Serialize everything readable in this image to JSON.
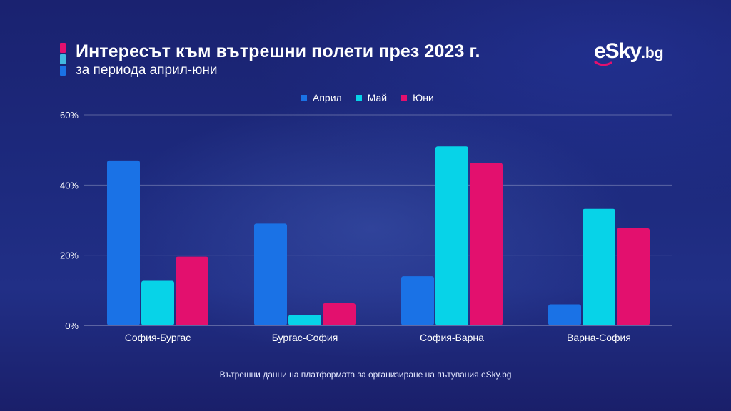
{
  "header": {
    "title": "Интересът към вътрешни полети през 2023 г.",
    "subtitle": "за периода април-юни"
  },
  "logo": {
    "brand": "eSky",
    "domain": ".bg"
  },
  "colors": {
    "april": "#1a72e6",
    "may": "#07d3e8",
    "june": "#e3106e",
    "accent_light": "#42b8e0"
  },
  "footer": {
    "note": "Вътрешни данни на платформата за организиране на пътувания eSky.bg"
  },
  "chart_data": {
    "type": "bar",
    "title": "Интересът към вътрешни полети през 2023 г.",
    "subtitle": "за периода април-юни",
    "categories": [
      "София-Бургас",
      "Бургас-София",
      "София-Варна",
      "Варна-София"
    ],
    "series": [
      {
        "name": "Април",
        "values": [
          47,
          29,
          14,
          6
        ]
      },
      {
        "name": "Май",
        "values": [
          12.7,
          3,
          51,
          33.2
        ]
      },
      {
        "name": "Юни",
        "values": [
          19.6,
          6.3,
          46.3,
          27.7
        ]
      }
    ],
    "y_ticks": [
      "0%",
      "20%",
      "40%",
      "60%"
    ],
    "ylim": [
      0,
      60
    ],
    "xlabel": "",
    "ylabel": "",
    "legend": "top-center",
    "grid": true
  }
}
